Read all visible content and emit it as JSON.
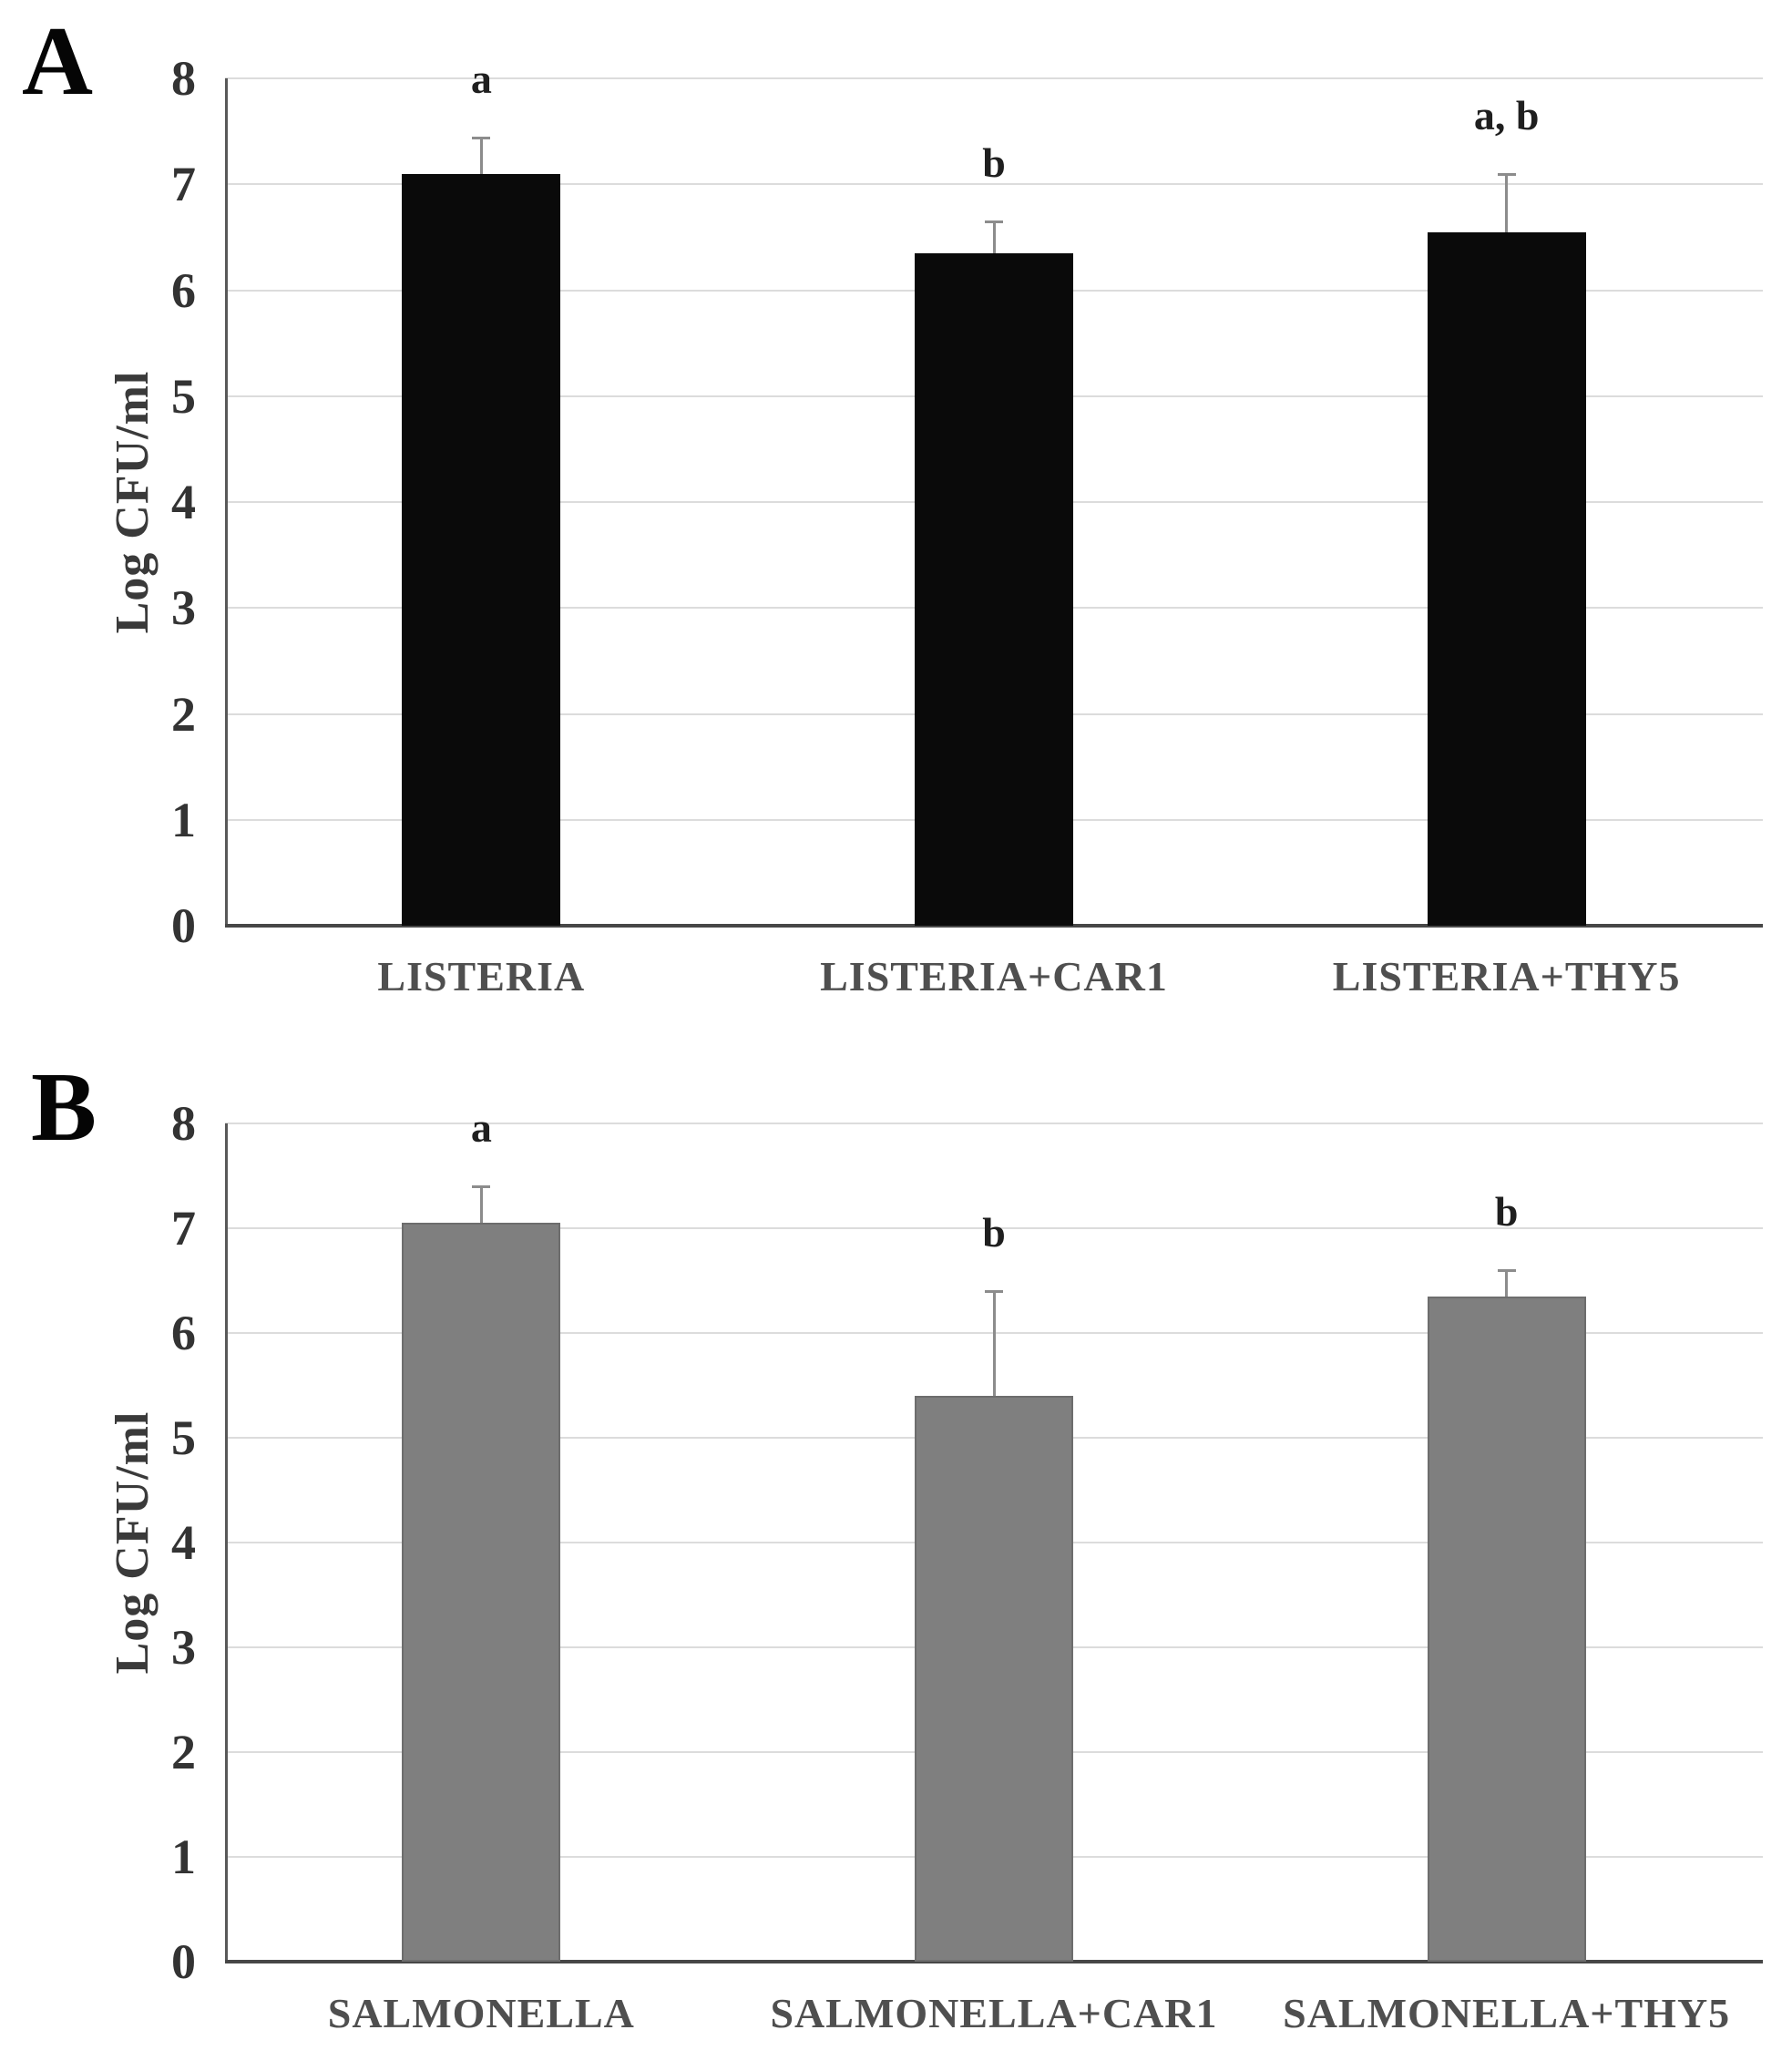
{
  "style": {
    "background": "#ffffff",
    "grid_color": "#dcdcdc",
    "y_axis_color": "#595959",
    "x_axis_color": "#474747",
    "tick_text_color": "#333333",
    "category_text_color": "#4f4f4f",
    "significance_text_color": "#1f1f1f",
    "y_title_color": "#3a3a3a",
    "error_bar_color": "#8c8c8c"
  },
  "chart_data": [
    {
      "type": "bar",
      "panel_label": "A",
      "title": "",
      "xlabel": "",
      "ylabel": "Log CFU/ml",
      "ylim": [
        0,
        8
      ],
      "yticks": [
        0,
        1,
        2,
        3,
        4,
        5,
        6,
        7,
        8
      ],
      "grid": true,
      "legend": "none",
      "bar_color": "#0a0a0a",
      "bar_border_color": "none",
      "categories": [
        "LISTERIA",
        "LISTERIA+CAR1",
        "LISTERIA+THY5"
      ],
      "values": [
        7.1,
        6.35,
        6.55
      ],
      "error_up": [
        0.34,
        0.3,
        0.55
      ],
      "significance_labels": [
        "a",
        "b",
        "a, b"
      ]
    },
    {
      "type": "bar",
      "panel_label": "B",
      "title": "",
      "xlabel": "",
      "ylabel": "Log CFU/ml",
      "ylim": [
        0,
        8
      ],
      "yticks": [
        0,
        1,
        2,
        3,
        4,
        5,
        6,
        7,
        8
      ],
      "grid": true,
      "legend": "none",
      "bar_color": "#7f7f7f",
      "bar_border_color": "#6d6d6d",
      "categories": [
        "SALMONELLA",
        "SALMONELLA+CAR1",
        "SALMONELLA+THY5"
      ],
      "values": [
        7.05,
        5.4,
        6.35
      ],
      "error_up": [
        0.35,
        1.0,
        0.25
      ],
      "significance_labels": [
        "a",
        "b",
        "b"
      ]
    }
  ]
}
